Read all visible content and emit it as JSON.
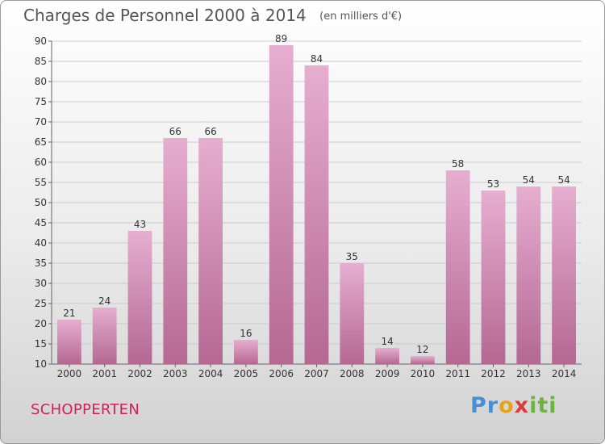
{
  "header": {
    "title": "Charges de Personnel 2000 à 2014",
    "subtitle": "(en milliers d'€)"
  },
  "footer": {
    "commune": "SCHOPPERTEN",
    "logo_text": "Proxiti"
  },
  "colors": {
    "bar_light": "#e6aed0",
    "bar_dark": "#b46892",
    "commune": "#d01f5b",
    "grid": "#cccccc"
  },
  "chart_data": {
    "type": "bar",
    "title": "Charges de Personnel 2000 à 2014",
    "subtitle": "(en milliers d'€)",
    "categories": [
      "2000",
      "2001",
      "2002",
      "2003",
      "2004",
      "2005",
      "2006",
      "2007",
      "2008",
      "2009",
      "2010",
      "2011",
      "2012",
      "2013",
      "2014"
    ],
    "values": [
      21,
      24,
      43,
      66,
      66,
      16,
      89,
      84,
      35,
      14,
      12,
      58,
      53,
      54,
      54
    ],
    "ylim": [
      10,
      90
    ],
    "yticks": [
      10,
      15,
      20,
      25,
      30,
      35,
      40,
      45,
      50,
      55,
      60,
      65,
      70,
      75,
      80,
      85,
      90
    ],
    "grid": true,
    "xlabel": "",
    "ylabel": ""
  }
}
